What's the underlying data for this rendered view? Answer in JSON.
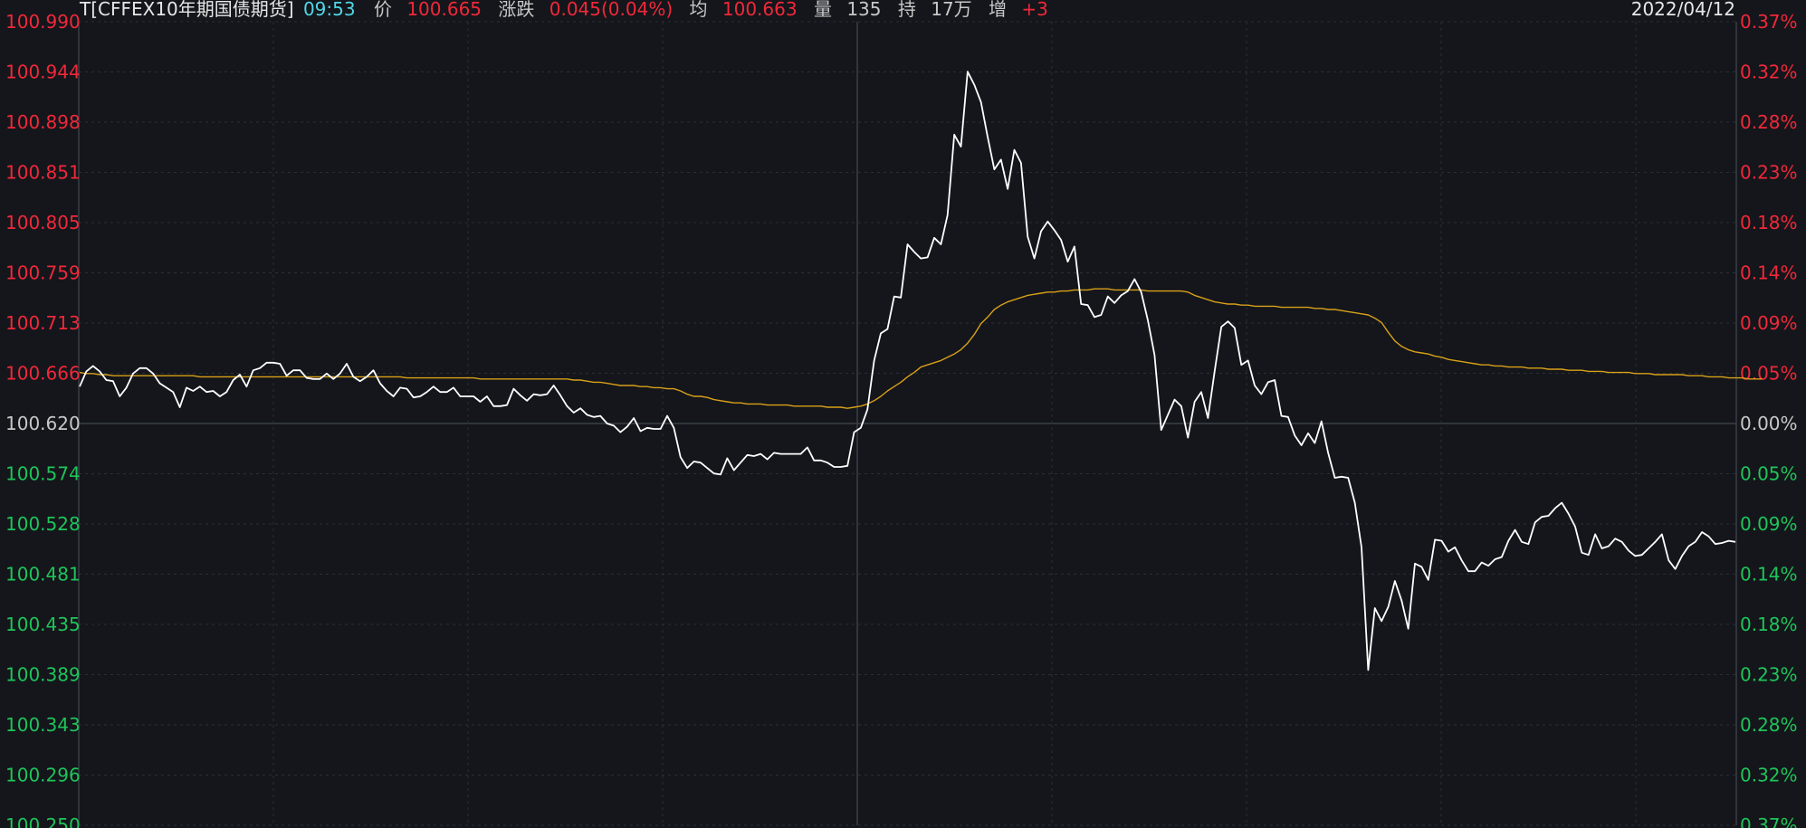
{
  "header": {
    "symbol": "T[CFFEX10年期国债期货]",
    "time": "09:53",
    "price_label": "价",
    "price": "100.665",
    "change_label": "涨跌",
    "change": "0.045(0.04%)",
    "avg_label": "均",
    "avg": "100.663",
    "volume_label": "量",
    "volume": "135",
    "hold_label": "持",
    "hold": "17万",
    "increase_label": "增",
    "increase": "+3",
    "date": "2022/04/12"
  },
  "colors": {
    "background": "#14161b",
    "up": "#f0283a",
    "down": "#1fc45a",
    "neutral": "#c8c8c8",
    "price_line": "#ffffff",
    "avg_line": "#d9a019",
    "time_cyan": "#4fd6e6",
    "grid": "#2a2e36"
  },
  "chart_data": {
    "type": "line",
    "base_price": 100.62,
    "y_ticks_left": [
      "100.990",
      "100.944",
      "100.898",
      "100.851",
      "100.805",
      "100.759",
      "100.713",
      "100.666",
      "100.620",
      "100.574",
      "100.528",
      "100.481",
      "100.435",
      "100.389",
      "100.343",
      "100.296",
      "100.250"
    ],
    "y_ticks_right": [
      "0.37%",
      "0.32%",
      "0.28%",
      "0.23%",
      "0.18%",
      "0.14%",
      "0.09%",
      "0.05%",
      "0.00%",
      "0.05%",
      "0.09%",
      "0.14%",
      "0.18%",
      "0.23%",
      "0.28%",
      "0.32%",
      "0.37%"
    ],
    "ylim": [
      100.25,
      100.99
    ],
    "series": [
      {
        "name": "价",
        "values": [
          100.654,
          100.668,
          100.673,
          100.668,
          100.66,
          100.659,
          100.645,
          100.653,
          100.666,
          100.671,
          100.671,
          100.666,
          100.657,
          100.653,
          100.649,
          100.635,
          100.653,
          100.65,
          100.654,
          100.649,
          100.65,
          100.645,
          100.649,
          100.66,
          100.665,
          100.654,
          100.669,
          100.671,
          100.676,
          100.676,
          100.675,
          100.664,
          100.669,
          100.669,
          100.662,
          100.661,
          100.661,
          100.666,
          100.661,
          100.666,
          100.675,
          100.663,
          100.659,
          100.663,
          100.669,
          100.657,
          100.65,
          100.645,
          100.653,
          100.652,
          100.644,
          100.645,
          100.649,
          100.654,
          100.649,
          100.649,
          100.653,
          100.645,
          100.645,
          100.645,
          100.64,
          100.645,
          100.636,
          100.636,
          100.637,
          100.652,
          100.646,
          100.641,
          100.647,
          100.646,
          100.647,
          100.655,
          100.646,
          100.636,
          100.63,
          100.634,
          100.628,
          100.626,
          100.627,
          100.62,
          100.618,
          100.612,
          100.617,
          100.625,
          100.613,
          100.616,
          100.615,
          100.615,
          100.627,
          100.616,
          100.589,
          100.579,
          100.585,
          100.584,
          100.579,
          100.574,
          100.573,
          100.588,
          100.577,
          100.584,
          100.591,
          100.59,
          100.592,
          100.587,
          100.593,
          100.592,
          100.592,
          100.592,
          100.592,
          100.598,
          100.586,
          100.586,
          100.584,
          100.58,
          100.58,
          100.581,
          100.612,
          100.616,
          100.633,
          100.678,
          100.703,
          100.707,
          100.737,
          100.736,
          100.785,
          100.778,
          100.772,
          100.773,
          100.791,
          100.785,
          100.812,
          100.886,
          100.875,
          100.944,
          100.932,
          100.916,
          100.884,
          100.854,
          100.863,
          100.836,
          100.872,
          100.86,
          100.792,
          100.772,
          100.797,
          100.806,
          100.798,
          100.789,
          100.769,
          100.783,
          100.73,
          100.729,
          100.718,
          100.72,
          100.737,
          100.731,
          100.738,
          100.742,
          100.753,
          100.741,
          100.715,
          100.683,
          100.614,
          100.628,
          100.642,
          100.636,
          100.607,
          100.64,
          100.649,
          100.625,
          100.668,
          100.709,
          100.714,
          100.708,
          100.674,
          100.678,
          100.655,
          100.647,
          100.658,
          100.66,
          100.627,
          100.626,
          100.609,
          100.6,
          100.611,
          100.602,
          100.622,
          100.593,
          100.57,
          100.571,
          100.57,
          100.547,
          100.506,
          100.393,
          100.45,
          100.438,
          100.451,
          100.475,
          100.457,
          100.431,
          100.491,
          100.488,
          100.476,
          100.513,
          100.512,
          100.502,
          100.506,
          100.494,
          100.484,
          100.484,
          100.492,
          100.489,
          100.495,
          100.497,
          100.512,
          100.522,
          100.511,
          100.509,
          100.529,
          100.534,
          100.535,
          100.542,
          100.547,
          100.537,
          100.525,
          100.501,
          100.499,
          100.518,
          100.505,
          100.507,
          100.514,
          100.511,
          100.503,
          100.498,
          100.499,
          100.505,
          100.511,
          100.518,
          100.494,
          100.486,
          100.498,
          100.507,
          100.511,
          100.52,
          100.516,
          100.509,
          100.51,
          100.512,
          100.511
        ]
      },
      {
        "name": "均",
        "values": [
          100.667,
          100.666,
          100.666,
          100.665,
          100.665,
          100.664,
          100.664,
          100.664,
          100.664,
          100.664,
          100.664,
          100.664,
          100.664,
          100.664,
          100.664,
          100.664,
          100.664,
          100.664,
          100.663,
          100.663,
          100.663,
          100.663,
          100.663,
          100.663,
          100.663,
          100.663,
          100.663,
          100.663,
          100.663,
          100.663,
          100.663,
          100.663,
          100.663,
          100.663,
          100.663,
          100.663,
          100.663,
          100.663,
          100.663,
          100.663,
          100.663,
          100.663,
          100.663,
          100.663,
          100.663,
          100.663,
          100.663,
          100.663,
          100.663,
          100.662,
          100.662,
          100.662,
          100.662,
          100.662,
          100.662,
          100.662,
          100.662,
          100.662,
          100.662,
          100.662,
          100.661,
          100.661,
          100.661,
          100.661,
          100.661,
          100.661,
          100.661,
          100.661,
          100.661,
          100.661,
          100.661,
          100.661,
          100.661,
          100.661,
          100.66,
          100.66,
          100.659,
          100.658,
          100.658,
          100.657,
          100.656,
          100.655,
          100.655,
          100.655,
          100.654,
          100.654,
          100.653,
          100.653,
          100.652,
          100.652,
          100.65,
          100.647,
          100.645,
          100.645,
          100.644,
          100.642,
          100.641,
          100.64,
          100.639,
          100.639,
          100.638,
          100.638,
          100.638,
          100.637,
          100.637,
          100.637,
          100.637,
          100.636,
          100.636,
          100.636,
          100.636,
          100.636,
          100.635,
          100.635,
          100.635,
          100.634,
          100.635,
          100.636,
          100.638,
          100.641,
          100.645,
          100.65,
          100.654,
          100.658,
          100.663,
          100.667,
          100.672,
          100.674,
          100.676,
          100.678,
          100.681,
          100.684,
          100.688,
          100.694,
          100.702,
          100.712,
          100.718,
          100.725,
          100.729,
          100.732,
          100.734,
          100.736,
          100.738,
          100.739,
          100.74,
          100.741,
          100.741,
          100.742,
          100.742,
          100.743,
          100.743,
          100.743,
          100.744,
          100.744,
          100.744,
          100.743,
          100.743,
          100.743,
          100.743,
          100.743,
          100.742,
          100.742,
          100.742,
          100.742,
          100.742,
          100.742,
          100.741,
          100.738,
          100.736,
          100.734,
          100.732,
          100.731,
          100.73,
          100.73,
          100.729,
          100.729,
          100.728,
          100.728,
          100.728,
          100.728,
          100.727,
          100.727,
          100.727,
          100.727,
          100.727,
          100.726,
          100.726,
          100.725,
          100.725,
          100.724,
          100.723,
          100.722,
          100.721,
          100.72,
          100.717,
          100.713,
          100.704,
          100.696,
          100.691,
          100.688,
          100.686,
          100.685,
          100.684,
          100.682,
          100.681,
          100.679,
          100.678,
          100.677,
          100.676,
          100.675,
          100.674,
          100.674,
          100.673,
          100.673,
          100.672,
          100.672,
          100.672,
          100.671,
          100.671,
          100.671,
          100.67,
          100.67,
          100.67,
          100.669,
          100.669,
          100.669,
          100.668,
          100.668,
          100.668,
          100.667,
          100.667,
          100.667,
          100.667,
          100.666,
          100.666,
          100.666,
          100.665,
          100.665,
          100.665,
          100.665,
          100.665,
          100.664,
          100.664,
          100.664,
          100.663,
          100.663,
          100.663,
          100.662,
          100.662,
          100.662,
          100.661,
          100.661,
          100.661
        ]
      }
    ],
    "grid": true
  }
}
